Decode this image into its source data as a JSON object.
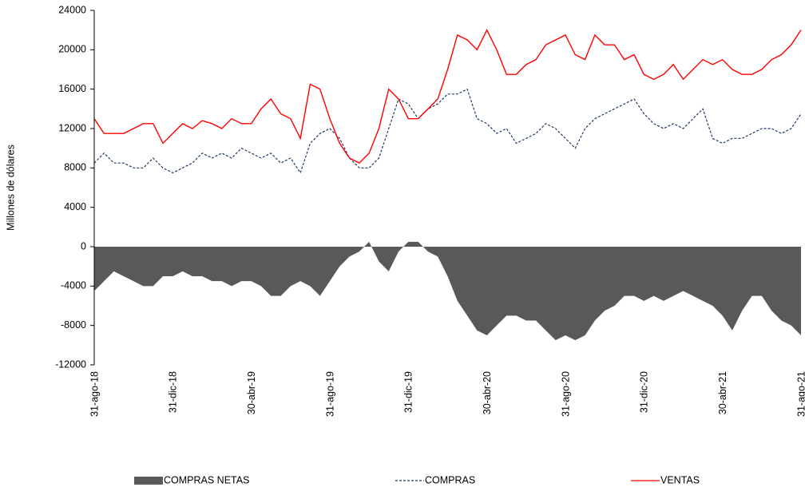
{
  "chart_data": {
    "type": "line",
    "y_label": "Millones de dólares",
    "categories": [
      "31-ago-18",
      null,
      null,
      null,
      null,
      null,
      null,
      null,
      "31-dic-18",
      null,
      null,
      null,
      null,
      null,
      null,
      null,
      "30-abr-19",
      null,
      null,
      null,
      null,
      null,
      null,
      null,
      "31-ago-19",
      null,
      null,
      null,
      null,
      null,
      null,
      null,
      "31-dic-19",
      null,
      null,
      null,
      null,
      null,
      null,
      null,
      "30-abr-20",
      null,
      null,
      null,
      null,
      null,
      null,
      null,
      "31-ago-20",
      null,
      null,
      null,
      null,
      null,
      null,
      null,
      "31-dic-20",
      null,
      null,
      null,
      null,
      null,
      null,
      null,
      "30-abr-21",
      null,
      null,
      null,
      null,
      null,
      null,
      null,
      "31-ago-21"
    ],
    "series": [
      {
        "name": "COMPRAS NETAS",
        "kind": "area",
        "color": "#595959",
        "values": [
          -4500,
          -3500,
          -2500,
          -3000,
          -3500,
          -4000,
          -4000,
          -3000,
          -3000,
          -2500,
          -3000,
          -3000,
          -3500,
          -3500,
          -4000,
          -3500,
          -3500,
          -4000,
          -5000,
          -5000,
          -4000,
          -3500,
          -4000,
          -5000,
          -3500,
          -2000,
          -1000,
          -500,
          500,
          -1500,
          -2500,
          -500,
          500,
          500,
          -500,
          -1000,
          -3000,
          -5500,
          -7000,
          -8500,
          -9000,
          -8000,
          -7000,
          -7000,
          -7500,
          -7500,
          -8500,
          -9500,
          -9000,
          -9500,
          -9000,
          -7500,
          -6500,
          -6000,
          -5000,
          -5000,
          -5500,
          -5000,
          -5500,
          -5000,
          -4500,
          -5000,
          -5500,
          -6000,
          -7000,
          -8500,
          -6500,
          -5000,
          -5000,
          -6500,
          -7500,
          -8000,
          -9000
        ]
      },
      {
        "name": "COMPRAS",
        "kind": "dashed",
        "color": "#1f3864",
        "values": [
          8500,
          9500,
          8500,
          8500,
          8000,
          8000,
          9000,
          8000,
          7500,
          8000,
          8500,
          9500,
          9000,
          9500,
          9000,
          10000,
          9500,
          9000,
          9500,
          8500,
          9000,
          7500,
          10500,
          11500,
          12000,
          11000,
          9000,
          8000,
          8000,
          9000,
          12000,
          15000,
          14500,
          13000,
          14000,
          14500,
          15500,
          15500,
          16000,
          13000,
          12500,
          11500,
          12000,
          10500,
          11000,
          11500,
          12500,
          12000,
          11000,
          10000,
          12000,
          13000,
          13500,
          14000,
          14500,
          15000,
          13500,
          12500,
          12000,
          12500,
          12000,
          13000,
          14000,
          11000,
          10500,
          11000,
          11000,
          11500,
          12000,
          12000,
          11500,
          12000,
          13500
        ]
      },
      {
        "name": "VENTAS",
        "kind": "solid",
        "color": "#ff0000",
        "values": [
          13000,
          11500,
          11500,
          11500,
          12000,
          12500,
          12500,
          10500,
          11500,
          12500,
          12000,
          12800,
          12500,
          12000,
          13000,
          12500,
          12500,
          14000,
          15000,
          13500,
          13000,
          11000,
          16500,
          16000,
          13000,
          10500,
          9000,
          8500,
          9500,
          12000,
          16000,
          15000,
          13000,
          13000,
          14000,
          15000,
          18000,
          21500,
          21000,
          20000,
          22000,
          20000,
          17500,
          17500,
          18500,
          19000,
          20500,
          21000,
          21500,
          19500,
          19000,
          21500,
          20500,
          20500,
          19000,
          19500,
          17500,
          17000,
          17500,
          18500,
          17000,
          18000,
          19000,
          18500,
          19000,
          18000,
          17500,
          17500,
          18000,
          19000,
          19500,
          20500,
          22000
        ]
      }
    ],
    "ylim": [
      -12000,
      24000
    ],
    "yticks": [
      -12000,
      -8000,
      -4000,
      0,
      4000,
      8000,
      12000,
      16000,
      20000,
      24000
    ]
  }
}
